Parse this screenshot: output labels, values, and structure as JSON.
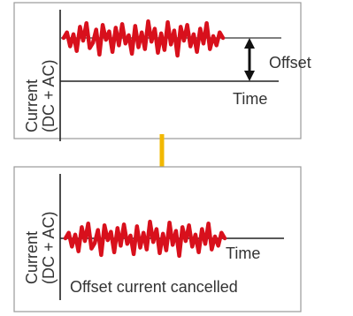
{
  "top_panel": {
    "ylabel_line1": "Current",
    "ylabel_line2": "(DC + AC)",
    "offset_label": "Offset",
    "time_label": "Time"
  },
  "bottom_panel": {
    "ylabel_line1": "Current",
    "ylabel_line2": "(DC + AC)",
    "time_label": "Time",
    "caption": "Offset current cancelled"
  },
  "colors": {
    "signal": "#d8101c",
    "arrow_down": "#f2b800",
    "axis": "#222222",
    "frame": "#9a9a9a"
  }
}
